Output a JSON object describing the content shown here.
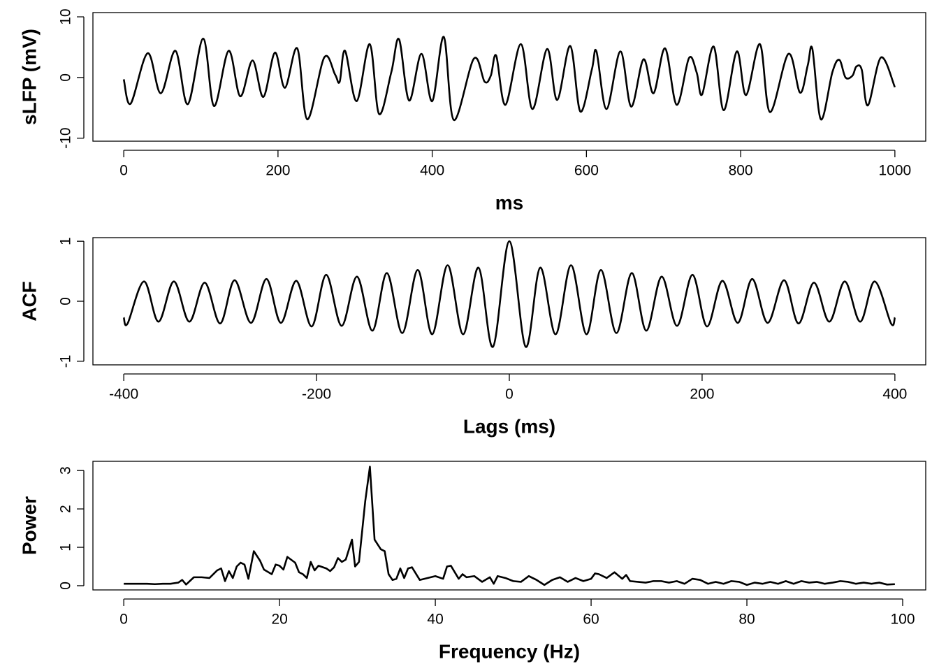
{
  "chart_data": [
    {
      "type": "line",
      "xlabel": "ms",
      "ylabel": "sLFP (mV)",
      "color": "#000000",
      "x": [
        0,
        9,
        31,
        48,
        67,
        83,
        103,
        117,
        136,
        151,
        167,
        181,
        196,
        209,
        225,
        238,
        260,
        274,
        280,
        287,
        302,
        319,
        331,
        347,
        357,
        370,
        386,
        400,
        415,
        428,
        454,
        468,
        476,
        483,
        495,
        515,
        530,
        549,
        562,
        579,
        592,
        607,
        613,
        626,
        644,
        658,
        674,
        687,
        702,
        717,
        733,
        743,
        750,
        765,
        778,
        795,
        807,
        825,
        838,
        862,
        877,
        887,
        893,
        904,
        919,
        928,
        936,
        945,
        950,
        957,
        965,
        982,
        1000
      ],
      "values": [
        -0.3,
        -4.3,
        4.0,
        -2.6,
        4.4,
        -4.4,
        6.4,
        -4.7,
        4.4,
        -3.1,
        2.8,
        -3.2,
        4.1,
        -1.7,
        4.8,
        -6.9,
        3.3,
        0.5,
        -0.7,
        4.4,
        -3.9,
        5.5,
        -6.0,
        0.9,
        6.3,
        -3.8,
        3.9,
        -3.9,
        6.7,
        -7.0,
        3.1,
        -0.7,
        0.3,
        3.6,
        -4.5,
        5.5,
        -5.2,
        4.7,
        -3.7,
        5.2,
        -5.6,
        1.3,
        4.3,
        -5.2,
        4.3,
        -4.8,
        3.0,
        -2.6,
        4.8,
        -4.5,
        3.2,
        0.8,
        -2.8,
        5.1,
        -5.4,
        4.3,
        -2.9,
        5.5,
        -5.7,
        3.9,
        -2.5,
        2.0,
        4.7,
        -6.9,
        0.9,
        2.9,
        0,
        0.3,
        1.8,
        1.3,
        -4.6,
        3.3,
        -1.6
      ],
      "xlim": [
        -40,
        1040
      ],
      "ylim": [
        -10.5,
        10.7
      ],
      "xticks": [
        0,
        200,
        400,
        600,
        800,
        1000
      ],
      "yticks": [
        -10,
        0,
        10
      ]
    },
    {
      "type": "line",
      "xlabel": "Lags (ms)",
      "ylabel": "ACF",
      "color": "#000000",
      "x": [
        -400,
        -396,
        -379,
        -364,
        -348,
        -332,
        -316,
        -300,
        -285,
        -268,
        -252,
        -237,
        -221,
        -205,
        -190,
        -174,
        -158,
        -142,
        -127,
        -111,
        -95,
        -80,
        -64,
        -48,
        -32,
        -17,
        0,
        17,
        32,
        48,
        64,
        80,
        95,
        111,
        127,
        142,
        158,
        174,
        190,
        205,
        221,
        237,
        252,
        268,
        285,
        300,
        316,
        332,
        348,
        364,
        379,
        396,
        400
      ],
      "values": [
        -0.27,
        -0.37,
        0.33,
        -0.34,
        0.33,
        -0.34,
        0.31,
        -0.37,
        0.35,
        -0.36,
        0.37,
        -0.36,
        0.34,
        -0.42,
        0.44,
        -0.41,
        0.41,
        -0.49,
        0.47,
        -0.53,
        0.52,
        -0.55,
        0.6,
        -0.55,
        0.56,
        -0.76,
        1.0,
        -0.76,
        0.56,
        -0.55,
        0.6,
        -0.55,
        0.52,
        -0.53,
        0.47,
        -0.49,
        0.41,
        -0.41,
        0.44,
        -0.42,
        0.34,
        -0.36,
        0.37,
        -0.36,
        0.35,
        -0.37,
        0.31,
        -0.34,
        0.33,
        -0.34,
        0.33,
        -0.37,
        -0.27
      ],
      "xlim": [
        -432,
        432
      ],
      "ylim": [
        -1.06,
        1.06
      ],
      "xticks": [
        -400,
        -200,
        0,
        200,
        400
      ],
      "yticks": [
        -1,
        0,
        1
      ]
    },
    {
      "type": "line",
      "xlabel": "Frequency (Hz)",
      "ylabel": "Power",
      "color": "#000000",
      "x": [
        0,
        1,
        2,
        3,
        4,
        5,
        6,
        7,
        7.5,
        8,
        9,
        10,
        11,
        12,
        12.5,
        13,
        13.5,
        14,
        14.5,
        15,
        15.5,
        16,
        16.7,
        17.5,
        18,
        19,
        19.5,
        20,
        20.5,
        21,
        22,
        22.5,
        23,
        23.5,
        24,
        24.5,
        25,
        26,
        26.5,
        27,
        27.5,
        28,
        28.5,
        29.3,
        29.7,
        30.2,
        31,
        31.6,
        32.2,
        33,
        33.5,
        34,
        34.5,
        35,
        35.5,
        36,
        36.5,
        37,
        38,
        39,
        40,
        41,
        41.5,
        42,
        43,
        43.5,
        44,
        45,
        46,
        47,
        47.5,
        48,
        49,
        50,
        51,
        52,
        53,
        54,
        55,
        56,
        57,
        58,
        59,
        60,
        60.5,
        61,
        62,
        63,
        64,
        64.5,
        65,
        66,
        67,
        68,
        69,
        70,
        71,
        72,
        73,
        74,
        75,
        76,
        77,
        78,
        79,
        80,
        81,
        82,
        83,
        84,
        85,
        86,
        87,
        88,
        89,
        90,
        91,
        92,
        93,
        94,
        95,
        96,
        97,
        98,
        99
      ],
      "values": [
        0.05,
        0.05,
        0.05,
        0.05,
        0.04,
        0.05,
        0.05,
        0.08,
        0.15,
        0.03,
        0.22,
        0.22,
        0.2,
        0.4,
        0.45,
        0.12,
        0.38,
        0.2,
        0.5,
        0.6,
        0.55,
        0.18,
        0.9,
        0.65,
        0.42,
        0.3,
        0.55,
        0.52,
        0.42,
        0.75,
        0.6,
        0.35,
        0.3,
        0.2,
        0.62,
        0.4,
        0.52,
        0.45,
        0.38,
        0.48,
        0.72,
        0.62,
        0.68,
        1.2,
        0.5,
        0.62,
        2.2,
        3.1,
        1.2,
        0.95,
        0.9,
        0.3,
        0.15,
        0.18,
        0.45,
        0.2,
        0.45,
        0.48,
        0.15,
        0.2,
        0.25,
        0.18,
        0.5,
        0.52,
        0.18,
        0.3,
        0.22,
        0.25,
        0.1,
        0.22,
        0.05,
        0.25,
        0.2,
        0.12,
        0.1,
        0.25,
        0.15,
        0.02,
        0.15,
        0.22,
        0.1,
        0.2,
        0.12,
        0.18,
        0.32,
        0.3,
        0.2,
        0.35,
        0.18,
        0.28,
        0.12,
        0.1,
        0.08,
        0.12,
        0.12,
        0.08,
        0.12,
        0.05,
        0.18,
        0.15,
        0.05,
        0.1,
        0.05,
        0.12,
        0.1,
        0.02,
        0.08,
        0.05,
        0.1,
        0.05,
        0.12,
        0.05,
        0.12,
        0.08,
        0.1,
        0.05,
        0.08,
        0.12,
        0.1,
        0.05,
        0.08,
        0.05,
        0.08,
        0.03,
        0.04
      ],
      "xlim": [
        -3.96,
        102.96
      ],
      "ylim": [
        -0.11,
        3.24
      ],
      "xticks": [
        0,
        20,
        40,
        60,
        80,
        100
      ],
      "yticks": [
        0,
        1,
        2,
        3
      ]
    }
  ]
}
